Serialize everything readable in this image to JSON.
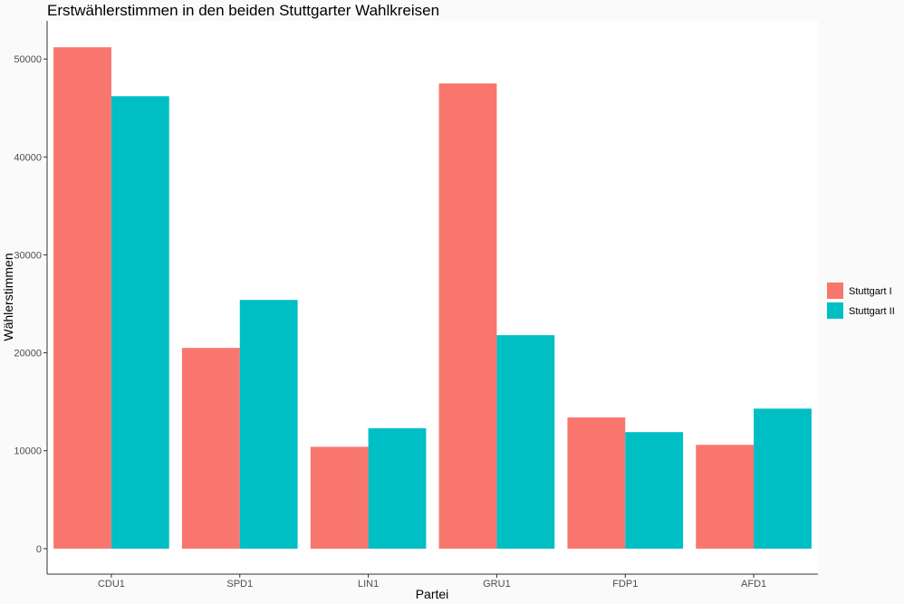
{
  "chart_data": {
    "type": "bar",
    "title": "Erstwählerstimmen in den beiden Stuttgarter Wahlkreisen",
    "xlabel": "Partei",
    "ylabel": "Wählerstimmen",
    "categories": [
      "CDU1",
      "SPD1",
      "LIN1",
      "GRU1",
      "FDP1",
      "AFD1"
    ],
    "series": [
      {
        "name": "Stuttgart I",
        "color": "#F8766D",
        "values": [
          51200,
          20500,
          10400,
          47500,
          13400,
          10600
        ]
      },
      {
        "name": "Stuttgart II",
        "color": "#00BFC4",
        "values": [
          46200,
          25400,
          12300,
          21800,
          11900,
          14300
        ]
      }
    ],
    "yticks": [
      0,
      10000,
      20000,
      30000,
      40000,
      50000
    ],
    "ytick_labels": [
      "0",
      "10000",
      "20000",
      "30000",
      "40000",
      "50000"
    ],
    "ylim": [
      -2600,
      53900
    ],
    "grid": false,
    "legend_position": "right"
  }
}
